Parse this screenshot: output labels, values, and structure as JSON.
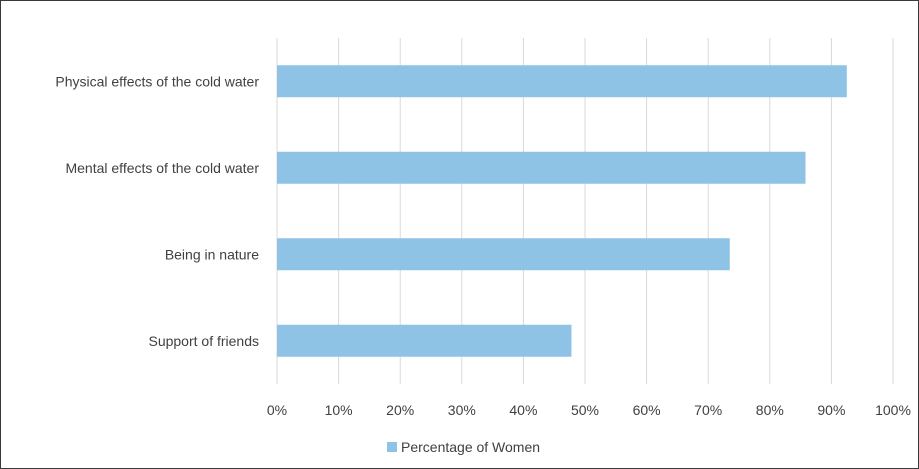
{
  "chart_data": {
    "type": "bar",
    "orientation": "horizontal",
    "categories": [
      "Physical effects of the cold water",
      "Mental effects of the cold water",
      "Being in nature",
      "Support of friends"
    ],
    "series": [
      {
        "name": "Percentage of Women",
        "values": [
          92.5,
          85.8,
          73.5,
          47.8
        ],
        "color": "#8ec3e6"
      }
    ],
    "xlim": [
      0,
      100
    ],
    "x_ticks": [
      "0%",
      "10%",
      "20%",
      "30%",
      "40%",
      "50%",
      "60%",
      "70%",
      "80%",
      "90%",
      "100%"
    ],
    "grid": "vertical",
    "legend_position": "bottom",
    "title": "",
    "xlabel": "",
    "ylabel": ""
  }
}
